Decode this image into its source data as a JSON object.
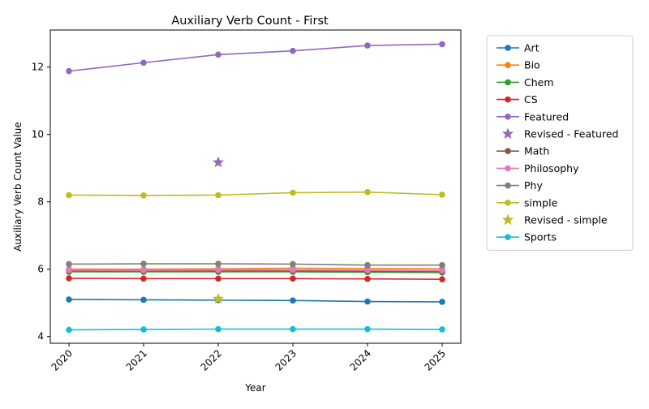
{
  "chart_data": {
    "type": "line",
    "title": "Auxiliary Verb Count - First",
    "xlabel": "Year",
    "ylabel": "Auxiliary Verb Count Value",
    "x": [
      "2020",
      "2021",
      "2022",
      "2023",
      "2024",
      "2025"
    ],
    "ylim": [
      3.8,
      13.1
    ],
    "yticks": [
      4,
      6,
      8,
      10,
      12
    ],
    "legend_position": "outside right, top",
    "series": [
      {
        "name": "Art",
        "color": "#1f77b4",
        "marker": "circle",
        "values": [
          5.1,
          5.09,
          5.08,
          5.07,
          5.04,
          5.03
        ]
      },
      {
        "name": "Bio",
        "color": "#ff7f0e",
        "marker": "circle",
        "values": [
          6.0,
          6.0,
          6.01,
          6.03,
          6.02,
          6.01
        ]
      },
      {
        "name": "Chem",
        "color": "#2ca02c",
        "marker": "circle",
        "values": [
          5.92,
          5.92,
          5.92,
          5.92,
          5.91,
          5.9
        ]
      },
      {
        "name": "CS",
        "color": "#d62728",
        "marker": "circle",
        "values": [
          5.73,
          5.72,
          5.72,
          5.72,
          5.71,
          5.7
        ]
      },
      {
        "name": "Featured",
        "color": "#9467bd",
        "marker": "circle",
        "values": [
          11.88,
          12.13,
          12.37,
          12.48,
          12.64,
          12.68
        ]
      },
      {
        "name": "Revised - Featured",
        "color": "#9467bd",
        "marker": "star",
        "points": [
          {
            "x": "2022",
            "y": 9.17
          }
        ]
      },
      {
        "name": "Math",
        "color": "#8c564b",
        "marker": "circle",
        "values": [
          5.95,
          5.95,
          5.95,
          5.95,
          5.94,
          5.93
        ]
      },
      {
        "name": "Philosophy",
        "color": "#e377c2",
        "marker": "circle",
        "values": [
          5.97,
          5.97,
          5.98,
          5.98,
          5.97,
          5.96
        ]
      },
      {
        "name": "Phy",
        "color": "#7f7f7f",
        "marker": "circle",
        "values": [
          6.15,
          6.16,
          6.16,
          6.15,
          6.12,
          6.12
        ]
      },
      {
        "name": "simple",
        "color": "#bcbd22",
        "marker": "circle",
        "values": [
          8.2,
          8.19,
          8.2,
          8.27,
          8.29,
          8.21
        ]
      },
      {
        "name": "Revised - simple",
        "color": "#bcbd22",
        "marker": "star",
        "points": [
          {
            "x": "2022",
            "y": 5.12
          }
        ]
      },
      {
        "name": "Sports",
        "color": "#17becf",
        "marker": "circle",
        "values": [
          4.2,
          4.21,
          4.22,
          4.22,
          4.22,
          4.21
        ]
      }
    ]
  }
}
